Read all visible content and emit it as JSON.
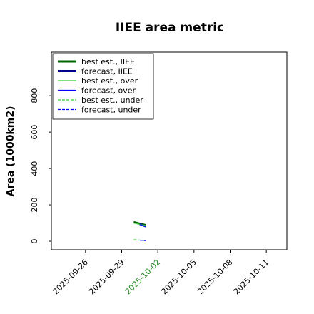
{
  "chart_data": {
    "type": "line",
    "title": "IIEE area metric",
    "y_label": "Area (1000km2)",
    "xlim": [
      "2025-09-23T04:00",
      "2025-10-12T17:00"
    ],
    "xticks": [
      "2025-09-26",
      "2025-09-29",
      "2025-10-02",
      "2025-10-05",
      "2025-10-08",
      "2025-10-11"
    ],
    "xtick_colors": [
      "#000000",
      "#000000",
      "#228b22",
      "#000000",
      "#000000",
      "#000000"
    ],
    "ylim": [
      -47,
      1040
    ],
    "yticks": [
      0,
      200,
      400,
      600,
      800
    ],
    "legend": "upper left",
    "series": [
      {
        "name": "best est., IIEE",
        "color": "#006400",
        "width": 3,
        "dash": "none",
        "x": [
          "2025-09-30",
          "2025-10-01"
        ],
        "values": [
          105,
          88
        ]
      },
      {
        "name": "forecast, IIEE",
        "color": "#00008b",
        "width": 3,
        "dash": "none",
        "x": [
          "2025-09-30T12:00",
          "2025-10-01"
        ],
        "values": [
          95,
          82
        ]
      },
      {
        "name": "best est., over",
        "color": "#32cd32",
        "width": 1.2,
        "dash": "none",
        "x": [
          "2025-09-30",
          "2025-10-01"
        ],
        "values": [
          100,
          86
        ]
      },
      {
        "name": "forecast, over",
        "color": "#0000ff",
        "width": 1.2,
        "dash": "none",
        "x": [
          "2025-09-30T12:00",
          "2025-10-01"
        ],
        "values": [
          92,
          80
        ]
      },
      {
        "name": "best est., under",
        "color": "#32cd32",
        "width": 1.2,
        "dash": "4,2",
        "x": [
          "2025-09-30",
          "2025-10-01"
        ],
        "values": [
          8,
          4
        ]
      },
      {
        "name": "forecast, under",
        "color": "#0000ff",
        "width": 1.2,
        "dash": "4,2",
        "x": [
          "2025-09-30T12:00",
          "2025-10-01"
        ],
        "values": [
          6,
          3
        ]
      }
    ]
  }
}
